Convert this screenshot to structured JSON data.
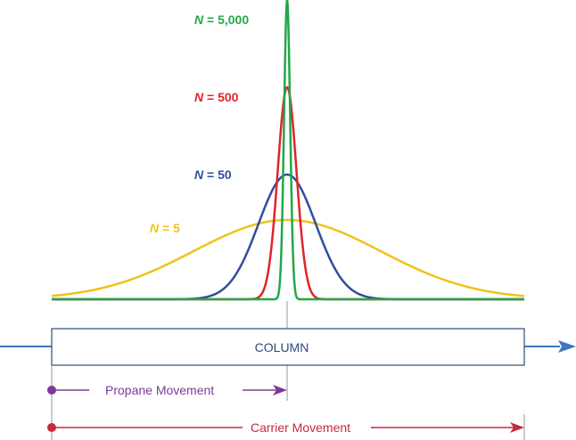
{
  "curves": [
    {
      "key": "n5000",
      "label_n": "N",
      "label_rest": " = 5,000",
      "color": "#22a84a"
    },
    {
      "key": "n500",
      "label_n": "N",
      "label_rest": " = 500",
      "color": "#e0242b"
    },
    {
      "key": "n50",
      "label_n": "N",
      "label_rest": " = 50",
      "color": "#2f4f9c"
    },
    {
      "key": "n5",
      "label_n": "N",
      "label_rest": " = 5",
      "color": "#f0c21a"
    }
  ],
  "column": {
    "label": "COLUMN"
  },
  "propane": {
    "label": "Propane Movement",
    "color": "#7b3a9a"
  },
  "carrier": {
    "label": "Carrier Movement",
    "color": "#c8283c"
  },
  "flow_arrow_color": "#3b78c0"
}
